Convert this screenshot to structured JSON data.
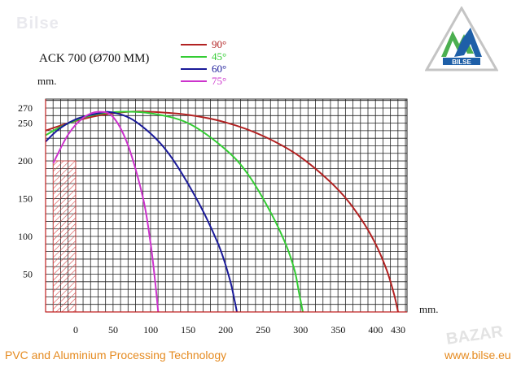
{
  "watermark_top": "Bilse",
  "watermark_bottom": "BAZAR",
  "logo": {
    "text": "BILSE",
    "colors": {
      "green": "#4caf50",
      "blue": "#1e5fa8",
      "gray": "#b9b9b9"
    }
  },
  "footer": {
    "left": "PVC and Aluminium Processing Technology",
    "right": "www.bilse.eu",
    "color": "#e58a1f"
  },
  "chart_data": {
    "type": "line",
    "title": "ACK 700 (Ø700 MM)",
    "xlabel": "mm.",
    "ylabel": "mm.",
    "xlim": [
      -30,
      430
    ],
    "ylim": [
      0,
      270
    ],
    "x_ticks": [
      0,
      50,
      100,
      150,
      200,
      250,
      300,
      350,
      400,
      430
    ],
    "y_ticks": [
      50,
      100,
      150,
      200,
      250,
      270
    ],
    "grid": true,
    "legend_position": "top-center",
    "hatched_region": {
      "x": [
        -30,
        0
      ],
      "y": [
        0,
        200
      ]
    },
    "series": [
      {
        "name": "90°",
        "color": "#b22222",
        "x": [
          -55,
          -10,
          30,
          70,
          100,
          150,
          200,
          250,
          300,
          350,
          380,
          400,
          415,
          425,
          430
        ],
        "y": [
          235,
          250,
          260,
          265,
          265,
          261,
          251,
          233,
          205,
          162,
          124,
          90,
          55,
          22,
          0
        ]
      },
      {
        "name": "45°",
        "color": "#33cc33",
        "x": [
          -55,
          -20,
          20,
          60,
          100,
          150,
          200,
          230,
          260,
          280,
          292,
          298,
          303
        ],
        "y": [
          225,
          245,
          260,
          265,
          263,
          250,
          215,
          182,
          132,
          90,
          55,
          25,
          0
        ]
      },
      {
        "name": "60°",
        "color": "#1a1a99",
        "x": [
          -55,
          -25,
          0,
          30,
          50,
          80,
          120,
          160,
          190,
          205,
          212,
          215
        ],
        "y": [
          210,
          240,
          255,
          263,
          264,
          252,
          215,
          152,
          90,
          45,
          15,
          0
        ]
      },
      {
        "name": "75°",
        "color": "#cc33cc",
        "x": [
          -30,
          -10,
          10,
          30,
          50,
          70,
          90,
          100,
          106,
          110
        ],
        "y": [
          197,
          235,
          257,
          265,
          258,
          220,
          150,
          90,
          40,
          0
        ]
      }
    ]
  }
}
